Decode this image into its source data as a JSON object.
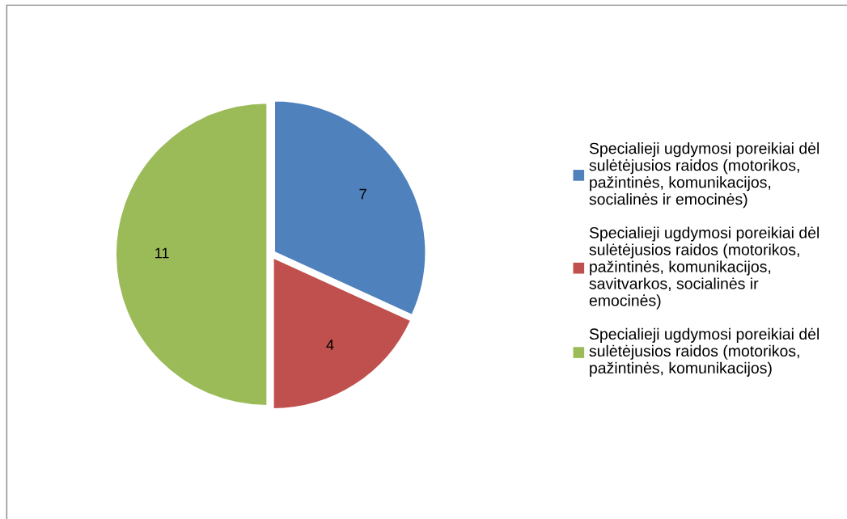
{
  "chart_data": {
    "type": "pie",
    "categories": [
      "Specialieji ugdymosi poreikiai dėl sulėtėjusios raidos (motorikos, pažintinės, komunikacijos, socialinės ir emocinės)",
      "Specialieji ugdymosi poreikiai dėl sulėtėjusios raidos (motorikos, pažintinės, komunikacijos, savitvarkos, socialinės ir emocinės)",
      "Specialieji ugdymosi poreikiai dėl sulėtėjusios raidos (motorikos, pažintinės, komunikacijos)"
    ],
    "values": [
      7,
      4,
      11
    ],
    "colors": [
      "#4f81bd",
      "#c0504d",
      "#9bbb59"
    ],
    "data_labels": true,
    "legend": "right"
  }
}
